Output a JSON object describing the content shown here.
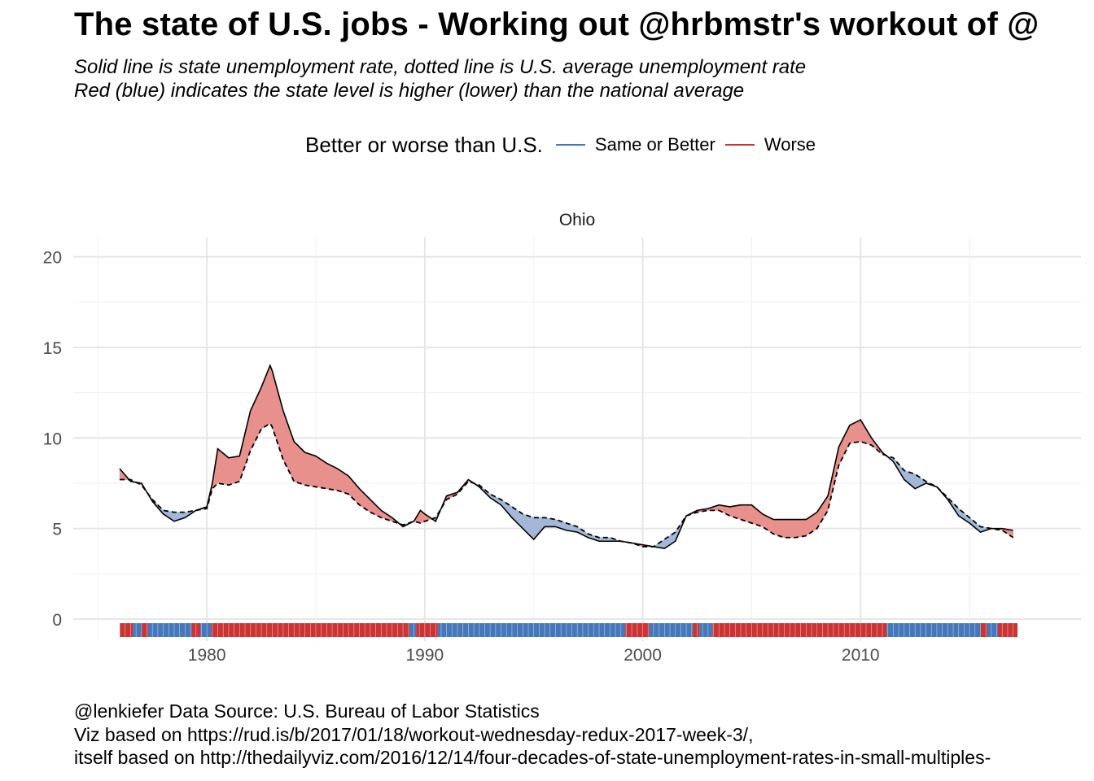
{
  "title": "The state of U.S. jobs - Working out @hrbmstr's workout of @",
  "subtitle_lines": [
    "Solid line is state unemployment rate, dotted line is U.S. average unemployment rate",
    "Red (blue) indicates the state level is higher (lower) than the national average"
  ],
  "legend": {
    "title": "Better or worse than U.S.",
    "items": [
      {
        "label": "Same or Better",
        "color": "#4477bb"
      },
      {
        "label": "Worse",
        "color": "#cc3333"
      }
    ]
  },
  "caption_lines": [
    "@lenkiefer Data Source: U.S. Bureau of Labor Statistics",
    "Viz based on https://rud.is/b/2017/01/18/workout-wednesday-redux-2017-week-3/,",
    "itself based on http://thedailyviz.com/2016/12/14/four-decades-of-state-unemployment-rates-in-small-multiples-"
  ],
  "chart_data": {
    "type": "area",
    "panel_title": "Ohio",
    "xlim": [
      1975,
      2018
    ],
    "ylim": [
      0,
      20
    ],
    "x_ticks": [
      1980,
      1990,
      2000,
      2010
    ],
    "y_ticks": [
      0,
      5,
      10,
      15,
      20
    ],
    "grid": true,
    "colors": {
      "better": "#4477bb",
      "worse": "#cc3333",
      "better_fill": "#a3b8d8",
      "worse_fill": "#e8908c"
    },
    "x": [
      1976.0,
      1976.5,
      1977.0,
      1977.5,
      1978.0,
      1978.5,
      1979.0,
      1979.5,
      1980.0,
      1980.25,
      1980.5,
      1981.0,
      1981.5,
      1982.0,
      1982.5,
      1982.9,
      1983.0,
      1983.5,
      1984.0,
      1984.5,
      1985.0,
      1985.5,
      1986.0,
      1986.5,
      1987.0,
      1987.5,
      1988.0,
      1988.5,
      1989.0,
      1989.5,
      1989.8,
      1990.0,
      1990.5,
      1991.0,
      1991.5,
      1992.0,
      1992.5,
      1993.0,
      1993.5,
      1994.0,
      1994.5,
      1995.0,
      1995.5,
      1996.0,
      1996.5,
      1997.0,
      1997.5,
      1998.0,
      1998.5,
      1999.0,
      1999.5,
      2000.0,
      2000.5,
      2001.0,
      2001.5,
      2002.0,
      2002.5,
      2003.0,
      2003.5,
      2004.0,
      2004.5,
      2005.0,
      2005.5,
      2006.0,
      2006.5,
      2007.0,
      2007.5,
      2008.0,
      2008.5,
      2009.0,
      2009.5,
      2010.0,
      2010.5,
      2011.0,
      2011.5,
      2012.0,
      2012.5,
      2013.0,
      2013.5,
      2014.0,
      2014.5,
      2015.0,
      2015.5,
      2016.0,
      2016.5,
      2017.0
    ],
    "series": [
      {
        "name": "",
        "values": [
          8.3,
          7.6,
          7.5,
          6.5,
          5.8,
          5.4,
          5.6,
          6.0,
          6.2,
          7.5,
          9.4,
          8.9,
          9.0,
          11.5,
          12.8,
          14.0,
          13.7,
          11.5,
          9.8,
          9.2,
          9.0,
          8.6,
          8.3,
          7.9,
          7.2,
          6.6,
          6.0,
          5.6,
          5.1,
          5.4,
          6.0,
          5.8,
          5.4,
          6.8,
          7.0,
          7.7,
          7.3,
          6.7,
          6.3,
          5.6,
          5.0,
          4.4,
          5.1,
          5.1,
          4.9,
          4.8,
          4.5,
          4.3,
          4.3,
          4.3,
          4.2,
          4.1,
          4.0,
          3.9,
          4.3,
          5.7,
          6.0,
          6.1,
          6.3,
          6.2,
          6.3,
          6.3,
          5.8,
          5.5,
          5.5,
          5.5,
          5.5,
          5.9,
          6.8,
          9.5,
          10.7,
          11.0,
          10.0,
          9.2,
          8.7,
          7.7,
          7.2,
          7.5,
          7.3,
          6.6,
          5.7,
          5.3,
          4.8,
          5.0,
          5.0,
          4.9
        ]
      },
      {
        "name": "",
        "values": [
          7.7,
          7.7,
          7.4,
          6.6,
          6.0,
          5.9,
          5.9,
          6.0,
          6.1,
          7.2,
          7.5,
          7.4,
          7.6,
          9.3,
          10.5,
          10.8,
          10.6,
          8.8,
          7.6,
          7.4,
          7.3,
          7.2,
          7.1,
          6.9,
          6.3,
          5.9,
          5.6,
          5.4,
          5.2,
          5.4,
          5.3,
          5.4,
          5.6,
          6.6,
          6.9,
          7.6,
          7.4,
          6.9,
          6.6,
          6.2,
          5.8,
          5.6,
          5.6,
          5.5,
          5.3,
          5.1,
          4.7,
          4.5,
          4.5,
          4.3,
          4.2,
          4.0,
          4.0,
          4.4,
          4.8,
          5.7,
          5.9,
          6.0,
          6.0,
          5.7,
          5.5,
          5.3,
          5.1,
          4.7,
          4.5,
          4.5,
          4.6,
          5.0,
          6.0,
          8.5,
          9.7,
          9.8,
          9.6,
          9.1,
          8.9,
          8.2,
          8.0,
          7.6,
          7.3,
          6.7,
          6.1,
          5.6,
          5.1,
          5.0,
          4.9,
          4.5
        ]
      }
    ],
    "rug": [
      {
        "start": 1976.0,
        "end": 1976.6,
        "status": "Worse"
      },
      {
        "start": 1976.6,
        "end": 1977.0,
        "status": "Same or Better"
      },
      {
        "start": 1977.0,
        "end": 1977.3,
        "status": "Worse"
      },
      {
        "start": 1977.3,
        "end": 1979.3,
        "status": "Same or Better"
      },
      {
        "start": 1979.3,
        "end": 1979.7,
        "status": "Worse"
      },
      {
        "start": 1979.7,
        "end": 1980.2,
        "status": "Same or Better"
      },
      {
        "start": 1980.2,
        "end": 1989.3,
        "status": "Worse"
      },
      {
        "start": 1989.3,
        "end": 1989.6,
        "status": "Same or Better"
      },
      {
        "start": 1989.6,
        "end": 1990.6,
        "status": "Worse"
      },
      {
        "start": 1990.6,
        "end": 1999.2,
        "status": "Same or Better"
      },
      {
        "start": 1999.2,
        "end": 2000.3,
        "status": "Worse"
      },
      {
        "start": 2000.3,
        "end": 2002.3,
        "status": "Same or Better"
      },
      {
        "start": 2002.3,
        "end": 2002.6,
        "status": "Worse"
      },
      {
        "start": 2002.6,
        "end": 2003.2,
        "status": "Same or Better"
      },
      {
        "start": 2003.2,
        "end": 2011.2,
        "status": "Worse"
      },
      {
        "start": 2011.2,
        "end": 2015.5,
        "status": "Same or Better"
      },
      {
        "start": 2015.5,
        "end": 2015.8,
        "status": "Worse"
      },
      {
        "start": 2015.8,
        "end": 2016.3,
        "status": "Same or Better"
      },
      {
        "start": 2016.3,
        "end": 2017.2,
        "status": "Worse"
      }
    ]
  }
}
